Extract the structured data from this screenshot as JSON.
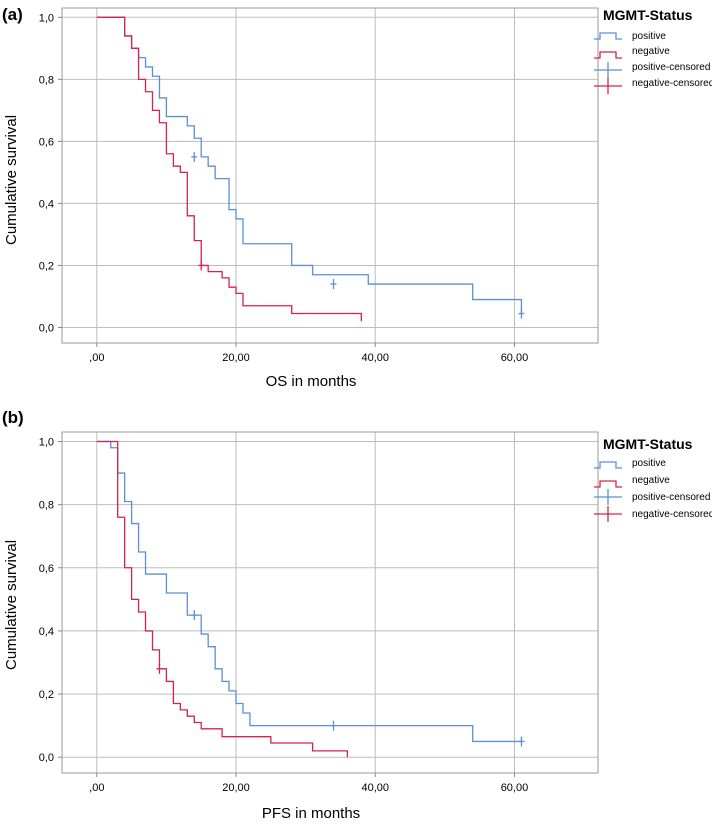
{
  "panels": [
    {
      "panel_label": "(a)",
      "legend_title": "MGMT-Status",
      "legend_entries": [
        "positive",
        "negative",
        "positive-censored",
        "negative-censored"
      ],
      "x_tick_labels": [
        ",00",
        "20,00",
        "40,00",
        "60,00"
      ],
      "y_tick_labels": [
        "0,0",
        "0,2",
        "0,4",
        "0,6",
        "0,8",
        "1,0"
      ],
      "xlabel": "OS in months",
      "ylabel": "Cumulative survival"
    },
    {
      "panel_label": "(b)",
      "legend_title": "MGMT-Status",
      "legend_entries": [
        "positive",
        "negative",
        "positive-censored",
        "negative-censored"
      ],
      "x_tick_labels": [
        ",00",
        "20,00",
        "40,00",
        "60,00"
      ],
      "y_tick_labels": [
        "0,0",
        "0,2",
        "0,4",
        "0,6",
        "0,8",
        "1,0"
      ],
      "xlabel": "PFS  in months",
      "ylabel": "Cumulative survival"
    }
  ],
  "colors": {
    "positive": "#5b8fd6",
    "negative": "#d6234a",
    "grid": "#bdbdbd",
    "axis": "#888888"
  },
  "chart_data": [
    {
      "type": "line",
      "step": "post",
      "title": "(a)",
      "xlabel": "OS in months",
      "ylabel": "Cumulative survival",
      "xlim": [
        -5,
        72
      ],
      "ylim": [
        -0.05,
        1.03
      ],
      "x_ticks": [
        0,
        20,
        40,
        60
      ],
      "y_ticks": [
        0,
        0.2,
        0.4,
        0.6,
        0.8,
        1.0
      ],
      "grid": true,
      "legend_position": "top-right outside",
      "series": [
        {
          "name": "positive",
          "x": [
            0,
            3.5,
            4,
            5,
            6,
            7,
            8,
            9,
            10,
            13,
            14,
            15,
            16,
            17,
            19,
            20,
            21,
            28,
            31,
            39,
            54,
            61
          ],
          "y": [
            1.0,
            1.0,
            0.94,
            0.9,
            0.87,
            0.84,
            0.81,
            0.74,
            0.68,
            0.65,
            0.61,
            0.55,
            0.52,
            0.48,
            0.38,
            0.35,
            0.27,
            0.2,
            0.17,
            0.14,
            0.09,
            0.045
          ],
          "end_x": 61,
          "censored": [
            [
              14,
              0.55
            ],
            [
              34,
              0.14
            ],
            [
              61,
              0.045
            ]
          ]
        },
        {
          "name": "negative",
          "x": [
            0,
            3,
            4,
            5,
            6,
            7,
            8,
            9,
            10,
            11,
            12,
            13,
            14,
            15,
            16,
            18,
            19,
            20,
            21,
            28,
            38
          ],
          "y": [
            1.0,
            1.0,
            0.94,
            0.9,
            0.8,
            0.76,
            0.7,
            0.66,
            0.56,
            0.52,
            0.5,
            0.36,
            0.28,
            0.2,
            0.18,
            0.16,
            0.13,
            0.11,
            0.07,
            0.045,
            0.02
          ],
          "end_x": 38,
          "censored": [
            [
              15,
              0.2
            ]
          ]
        }
      ]
    },
    {
      "type": "line",
      "step": "post",
      "title": "(b)",
      "xlabel": "PFS  in months",
      "ylabel": "Cumulative survival",
      "xlim": [
        -5,
        72
      ],
      "ylim": [
        -0.05,
        1.03
      ],
      "x_ticks": [
        0,
        20,
        40,
        60
      ],
      "y_ticks": [
        0,
        0.2,
        0.4,
        0.6,
        0.8,
        1.0
      ],
      "grid": true,
      "legend_position": "top-right outside",
      "series": [
        {
          "name": "positive",
          "x": [
            0,
            2,
            3,
            4,
            5,
            6,
            7,
            10,
            13,
            15,
            16,
            17,
            18,
            19,
            20,
            21,
            22,
            54,
            61
          ],
          "y": [
            1.0,
            0.98,
            0.9,
            0.81,
            0.74,
            0.65,
            0.58,
            0.52,
            0.45,
            0.39,
            0.35,
            0.28,
            0.24,
            0.21,
            0.17,
            0.14,
            0.1,
            0.05,
            0.05
          ],
          "end_x": 61,
          "censored": [
            [
              14,
              0.45
            ],
            [
              34,
              0.1
            ],
            [
              61,
              0.05
            ]
          ]
        },
        {
          "name": "negative",
          "x": [
            0,
            2.5,
            3,
            4,
            5,
            6,
            7,
            8,
            9,
            10,
            11,
            12,
            13,
            14,
            15,
            18,
            25,
            31,
            36
          ],
          "y": [
            1.0,
            1.0,
            0.76,
            0.6,
            0.5,
            0.46,
            0.4,
            0.34,
            0.28,
            0.24,
            0.17,
            0.15,
            0.13,
            0.11,
            0.09,
            0.065,
            0.045,
            0.02,
            0.0
          ],
          "end_x": 36,
          "censored": [
            [
              9,
              0.28
            ]
          ]
        }
      ]
    }
  ]
}
